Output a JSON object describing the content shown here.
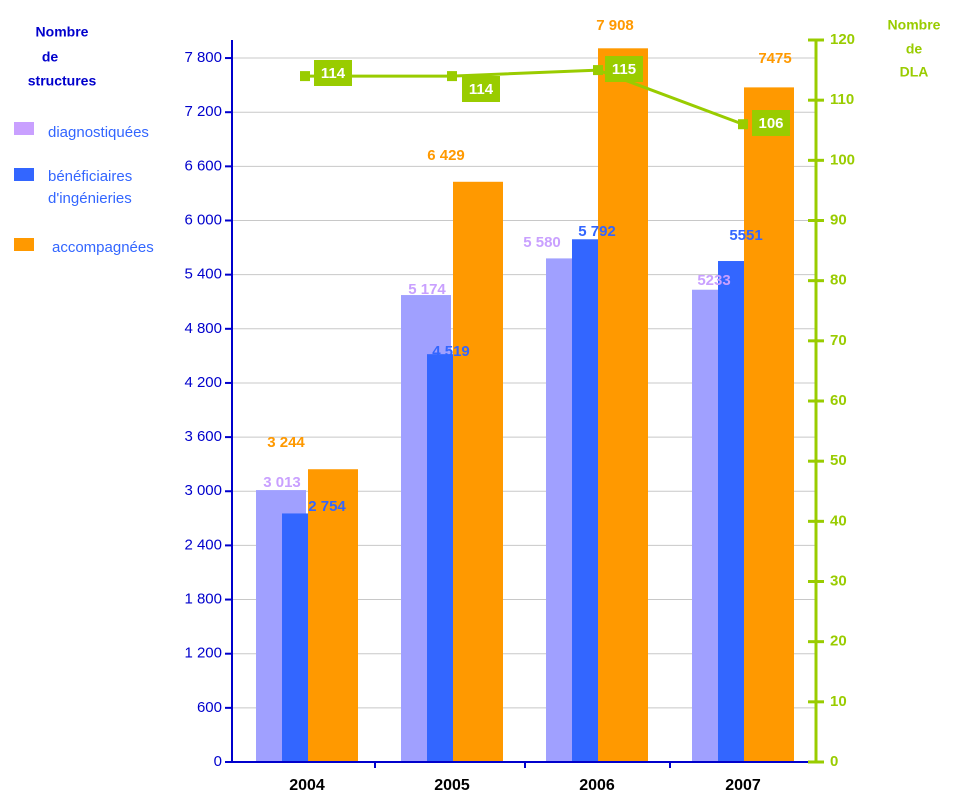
{
  "chart_data": {
    "type": "bar",
    "y_axis_left": {
      "label_lines": [
        "Nombre",
        "de",
        "structures"
      ],
      "min": 0,
      "max": 8000,
      "ticks": [
        0,
        600,
        1200,
        1800,
        2400,
        3000,
        3600,
        4200,
        4800,
        5400,
        6000,
        6600,
        7200,
        7800
      ],
      "tick_labels": [
        "0",
        "600",
        "1 200",
        "1 800",
        "2 400",
        "3 000",
        "3 600",
        "4 200",
        "4 800",
        "5 400",
        "6 000",
        "6 600",
        "7 200",
        "7 800"
      ]
    },
    "y_axis_right": {
      "label_lines": [
        "Nombre",
        "de",
        "DLA"
      ],
      "min": 0,
      "max": 120,
      "ticks": [
        0,
        10,
        20,
        30,
        40,
        50,
        60,
        70,
        80,
        90,
        100,
        110,
        120
      ],
      "tick_labels": [
        "0",
        "10",
        "20",
        "30",
        "40",
        "50",
        "60",
        "70",
        "80",
        "90",
        "100",
        "110",
        "120"
      ]
    },
    "categories": [
      "2004",
      "2005",
      "2006",
      "2007"
    ],
    "series": [
      {
        "name": "diagnostiquées",
        "color": "#a0a0ff",
        "label_color": "#c9a0ff",
        "values": [
          3013,
          5174,
          5580,
          5233
        ],
        "labels": [
          "3 013",
          "5 174",
          "5 580",
          "5233"
        ]
      },
      {
        "name": "bénéficiaires d'ingénieries",
        "color": "#3366ff",
        "label_color": "#3366ff",
        "values": [
          2754,
          4519,
          5792,
          5551
        ],
        "labels": [
          "2 754",
          "4 519",
          "5 792",
          "5551"
        ]
      },
      {
        "name": "accompagnées",
        "color": "#ff9900",
        "label_color": "#ff9900",
        "values": [
          3244,
          6429,
          7908,
          7475
        ],
        "labels": [
          "3 244",
          "6 429",
          "7 908",
          "7475"
        ]
      }
    ],
    "legend": {
      "placement": "top-left",
      "items": [
        {
          "lines": [
            "diagnostiquées"
          ],
          "color": "#c9a0ff"
        },
        {
          "lines": [
            "bénéficiaires",
            "d'ingénieries"
          ],
          "color": "#3366ff"
        },
        {
          "lines": [
            "accompagnées"
          ],
          "color": "#ff9900"
        }
      ]
    },
    "line_series": {
      "name": "Nombre de DLA",
      "axis": "right",
      "color": "#99cc00",
      "values": [
        114,
        114,
        115,
        106
      ],
      "labels": [
        "114",
        "114",
        "115",
        "106"
      ]
    }
  }
}
